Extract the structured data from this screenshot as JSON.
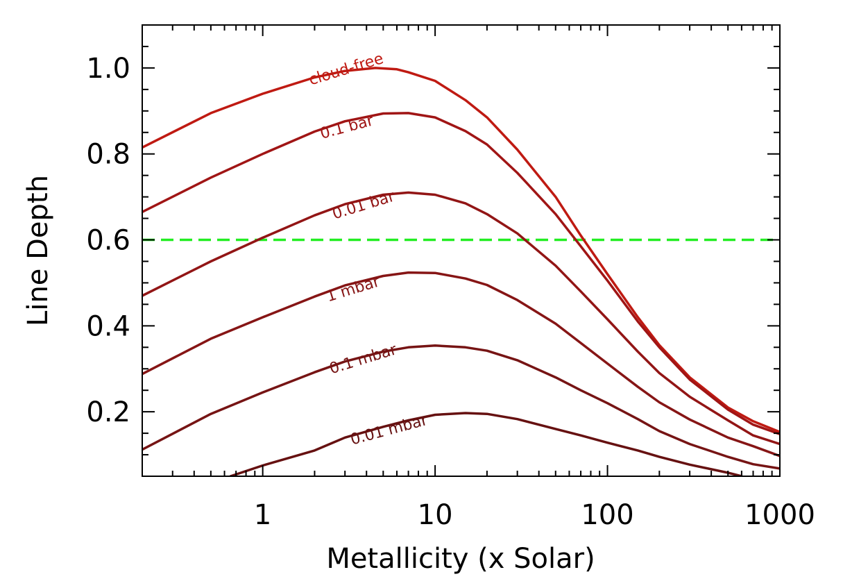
{
  "chart_data": {
    "type": "line",
    "title": "",
    "xlabel": "Metallicity (x Solar)",
    "ylabel": "Line Depth",
    "xscale": "log",
    "xlim": [
      0.2,
      1000
    ],
    "ylim": [
      0.05,
      1.1
    ],
    "xticks": [
      {
        "value": 1,
        "label": "1"
      },
      {
        "value": 10,
        "label": "10"
      },
      {
        "value": 100,
        "label": "100"
      },
      {
        "value": 1000,
        "label": "1000"
      }
    ],
    "yticks": [
      {
        "value": 0.2,
        "label": "0.2"
      },
      {
        "value": 0.4,
        "label": "0.4"
      },
      {
        "value": 0.6,
        "label": "0.6"
      },
      {
        "value": 0.8,
        "label": "0.8"
      },
      {
        "value": 1.0,
        "label": "1.0"
      }
    ],
    "reference_line": {
      "y": 0.6,
      "color": "#22ee22",
      "style": "dashed"
    },
    "series": [
      {
        "name": "cloud-free",
        "color": "#bf1a12",
        "label_pos": [
          1.9,
          0.96
        ],
        "label_angle": -17,
        "x": [
          0.2,
          0.5,
          1,
          2,
          3,
          4.5,
          6,
          7,
          10,
          15,
          20,
          30,
          50,
          70,
          100,
          150,
          200,
          300,
          500,
          700,
          1000
        ],
        "y": [
          0.815,
          0.895,
          0.94,
          0.978,
          0.993,
          1.0,
          0.997,
          0.99,
          0.97,
          0.925,
          0.885,
          0.81,
          0.7,
          0.61,
          0.52,
          0.42,
          0.355,
          0.28,
          0.21,
          0.178,
          0.153
        ]
      },
      {
        "name": "0.1 bar",
        "color": "#a01515",
        "label_pos": [
          2.2,
          0.835
        ],
        "label_angle": -15,
        "x": [
          0.2,
          0.5,
          1,
          2,
          3,
          5,
          7,
          10,
          15,
          20,
          30,
          50,
          70,
          100,
          150,
          200,
          300,
          500,
          700,
          1000
        ],
        "y": [
          0.665,
          0.745,
          0.8,
          0.852,
          0.876,
          0.894,
          0.895,
          0.885,
          0.853,
          0.822,
          0.756,
          0.66,
          0.585,
          0.505,
          0.41,
          0.35,
          0.275,
          0.205,
          0.17,
          0.148
        ]
      },
      {
        "name": "0.01 bar",
        "color": "#921515",
        "label_pos": [
          2.6,
          0.648
        ],
        "label_angle": -17,
        "x": [
          0.2,
          0.5,
          1,
          2,
          3,
          5,
          7,
          10,
          15,
          20,
          30,
          50,
          70,
          100,
          150,
          200,
          300,
          500,
          700,
          1000
        ],
        "y": [
          0.47,
          0.55,
          0.605,
          0.657,
          0.683,
          0.705,
          0.71,
          0.705,
          0.685,
          0.66,
          0.615,
          0.54,
          0.48,
          0.415,
          0.34,
          0.29,
          0.235,
          0.18,
          0.145,
          0.125
        ]
      },
      {
        "name": "1 mbar",
        "color": "#861515",
        "label_pos": [
          2.4,
          0.456
        ],
        "label_angle": -17,
        "x": [
          0.2,
          0.5,
          1,
          2,
          3,
          5,
          7,
          10,
          15,
          20,
          30,
          50,
          70,
          100,
          150,
          200,
          300,
          500,
          700,
          1000
        ],
        "y": [
          0.288,
          0.37,
          0.42,
          0.468,
          0.494,
          0.516,
          0.524,
          0.523,
          0.51,
          0.495,
          0.46,
          0.405,
          0.36,
          0.312,
          0.258,
          0.222,
          0.182,
          0.14,
          0.12,
          0.097
        ]
      },
      {
        "name": "0.1 mbar",
        "color": "#761414",
        "label_pos": [
          2.5,
          0.288
        ],
        "label_angle": -17,
        "x": [
          0.2,
          0.5,
          1,
          2,
          3,
          5,
          7,
          10,
          15,
          20,
          30,
          50,
          70,
          100,
          150,
          200,
          300,
          500,
          700,
          1000
        ],
        "y": [
          0.112,
          0.195,
          0.245,
          0.292,
          0.317,
          0.34,
          0.35,
          0.354,
          0.35,
          0.342,
          0.32,
          0.28,
          0.25,
          0.22,
          0.183,
          0.155,
          0.125,
          0.095,
          0.078,
          0.068
        ]
      },
      {
        "name": "0.01 mbar",
        "color": "#661111",
        "label_pos": [
          3.3,
          0.123
        ],
        "label_angle": -15,
        "x": [
          0.65,
          1,
          2,
          3,
          5,
          7,
          10,
          15,
          20,
          30,
          50,
          70,
          100,
          150,
          200,
          300,
          500,
          600
        ],
        "y": [
          0.05,
          0.075,
          0.11,
          0.14,
          0.165,
          0.18,
          0.193,
          0.197,
          0.195,
          0.183,
          0.16,
          0.145,
          0.128,
          0.11,
          0.095,
          0.077,
          0.058,
          0.05
        ]
      }
    ]
  }
}
